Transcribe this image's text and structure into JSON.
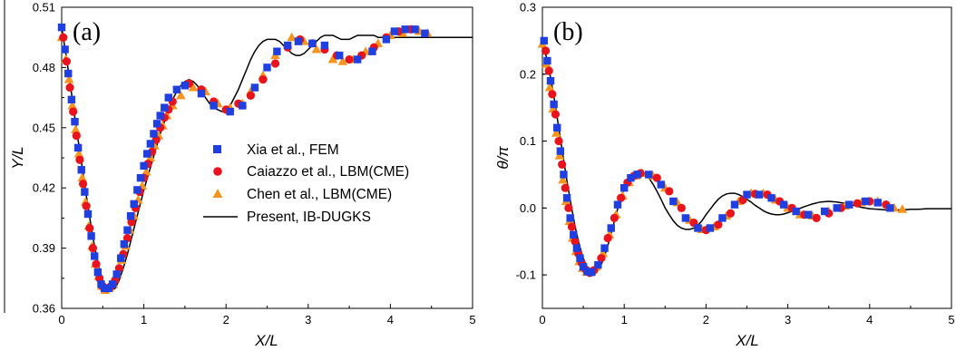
{
  "colors": {
    "fem": "#1f3fe0",
    "lbm_caiazzo": "#e8131c",
    "lbm_chen": "#f5951f",
    "present": "#000000"
  },
  "chart_data": [
    {
      "type": "scatter",
      "panel_label": "(a)",
      "xlabel": "X/L",
      "ylabel": "Y/L",
      "xlim": [
        0,
        5
      ],
      "ylim": [
        0.36,
        0.51
      ],
      "xticks": [
        0,
        1,
        2,
        3,
        4,
        5
      ],
      "yticks": [
        0.36,
        0.39,
        0.42,
        0.45,
        0.48,
        0.51
      ],
      "legend_position": "center-right",
      "series": [
        {
          "name": "Xia et al., FEM",
          "marker": "square",
          "color": "#1f3fe0",
          "x": [
            0.0,
            0.04,
            0.08,
            0.12,
            0.16,
            0.2,
            0.24,
            0.28,
            0.32,
            0.36,
            0.4,
            0.44,
            0.48,
            0.52,
            0.57,
            0.62,
            0.67,
            0.72,
            0.76,
            0.8,
            0.84,
            0.88,
            0.92,
            0.96,
            1.0,
            1.04,
            1.08,
            1.12,
            1.16,
            1.2,
            1.25,
            1.3,
            1.4,
            1.5,
            1.7,
            1.85,
            2.05,
            2.2,
            2.35,
            2.5,
            2.62,
            2.75,
            2.88,
            3.05,
            3.2,
            3.38,
            3.6,
            3.78,
            3.95,
            4.05,
            4.18,
            4.3,
            4.42
          ],
          "y": [
            0.5,
            0.489,
            0.477,
            0.464,
            0.453,
            0.44,
            0.429,
            0.418,
            0.407,
            0.396,
            0.386,
            0.378,
            0.372,
            0.37,
            0.37,
            0.372,
            0.377,
            0.385,
            0.392,
            0.399,
            0.406,
            0.412,
            0.419,
            0.425,
            0.431,
            0.437,
            0.442,
            0.447,
            0.452,
            0.456,
            0.46,
            0.465,
            0.469,
            0.471,
            0.467,
            0.461,
            0.458,
            0.461,
            0.47,
            0.48,
            0.488,
            0.491,
            0.493,
            0.492,
            0.491,
            0.486,
            0.484,
            0.488,
            0.494,
            0.498,
            0.499,
            0.499,
            0.497
          ]
        },
        {
          "name": "Caiazzo et al., LBM(CME)",
          "marker": "circle",
          "color": "#e8131c",
          "x": [
            0.02,
            0.06,
            0.1,
            0.14,
            0.18,
            0.22,
            0.26,
            0.3,
            0.34,
            0.38,
            0.42,
            0.46,
            0.5,
            0.55,
            0.6,
            0.65,
            0.7,
            0.75,
            0.8,
            0.85,
            0.9,
            0.95,
            1.0,
            1.05,
            1.1,
            1.15,
            1.2,
            1.25,
            1.3,
            1.35,
            1.55,
            1.7,
            1.85,
            2.0,
            2.15,
            2.3,
            2.45,
            2.6,
            2.75,
            2.9,
            3.05,
            3.2,
            3.35,
            3.5,
            3.65,
            3.8,
            3.95,
            4.1,
            4.25
          ],
          "y": [
            0.495,
            0.483,
            0.47,
            0.458,
            0.446,
            0.434,
            0.422,
            0.411,
            0.4,
            0.39,
            0.382,
            0.375,
            0.371,
            0.37,
            0.371,
            0.374,
            0.38,
            0.387,
            0.395,
            0.403,
            0.41,
            0.418,
            0.425,
            0.432,
            0.438,
            0.444,
            0.45,
            0.455,
            0.459,
            0.463,
            0.472,
            0.469,
            0.463,
            0.459,
            0.462,
            0.466,
            0.474,
            0.482,
            0.49,
            0.494,
            0.492,
            0.489,
            0.486,
            0.484,
            0.486,
            0.49,
            0.495,
            0.498,
            0.499
          ]
        },
        {
          "name": "Chen et al., LBM(CME)",
          "marker": "triangle",
          "color": "#f5951f",
          "x": [
            0.0,
            0.05,
            0.09,
            0.13,
            0.17,
            0.21,
            0.25,
            0.29,
            0.33,
            0.37,
            0.41,
            0.45,
            0.49,
            0.53,
            0.58,
            0.63,
            0.68,
            0.73,
            0.78,
            0.83,
            0.88,
            0.93,
            0.98,
            1.03,
            1.08,
            1.13,
            1.18,
            1.23,
            1.28,
            1.35,
            1.45,
            1.6,
            1.75,
            1.9,
            2.05,
            2.2,
            2.3,
            2.45,
            2.6,
            2.8,
            2.95,
            3.1,
            3.3,
            3.42,
            3.55,
            3.7,
            3.85,
            4.0,
            4.15,
            4.35,
            4.45
          ],
          "y": [
            0.495,
            0.484,
            0.474,
            0.461,
            0.449,
            0.437,
            0.425,
            0.413,
            0.401,
            0.391,
            0.382,
            0.376,
            0.371,
            0.369,
            0.37,
            0.372,
            0.377,
            0.384,
            0.391,
            0.399,
            0.406,
            0.414,
            0.421,
            0.428,
            0.435,
            0.441,
            0.446,
            0.451,
            0.456,
            0.461,
            0.466,
            0.47,
            0.468,
            0.462,
            0.46,
            0.462,
            0.468,
            0.476,
            0.486,
            0.495,
            0.493,
            0.489,
            0.484,
            0.483,
            0.484,
            0.488,
            0.492,
            0.496,
            0.497,
            0.498,
            0.497
          ]
        },
        {
          "name": "Present, IB-DUGKS",
          "marker": "line",
          "color": "#000000",
          "x": [
            0.0,
            0.05,
            0.1,
            0.15,
            0.2,
            0.25,
            0.3,
            0.35,
            0.4,
            0.45,
            0.5,
            0.55,
            0.6,
            0.65,
            0.7,
            0.75,
            0.8,
            0.85,
            0.9,
            0.95,
            1.0,
            1.05,
            1.1,
            1.15,
            1.2,
            1.25,
            1.3,
            1.35,
            1.4,
            1.45,
            1.5,
            1.55,
            1.6,
            1.65,
            1.7,
            1.75,
            1.8,
            1.85,
            1.9,
            1.95,
            2.0,
            2.05,
            2.1,
            2.15,
            2.2,
            2.25,
            2.3,
            2.35,
            2.4,
            2.45,
            2.5,
            2.55,
            2.6,
            2.65,
            2.7,
            2.75,
            2.8,
            2.85,
            2.9,
            2.95,
            3.0,
            3.05,
            3.1,
            3.15,
            3.2,
            3.25,
            3.3,
            3.35,
            3.4,
            3.45,
            3.5,
            3.55,
            3.6,
            3.65,
            3.7,
            3.75,
            3.8,
            3.85,
            3.9,
            3.95,
            4.0,
            4.05,
            4.1,
            4.15,
            4.2,
            4.25,
            4.3,
            4.35,
            4.4,
            4.45,
            4.5,
            4.6,
            4.7,
            4.8,
            4.9,
            5.0
          ],
          "y": [
            0.5,
            0.487,
            0.473,
            0.458,
            0.444,
            0.43,
            0.416,
            0.403,
            0.391,
            0.381,
            0.374,
            0.37,
            0.369,
            0.37,
            0.374,
            0.38,
            0.387,
            0.395,
            0.403,
            0.411,
            0.419,
            0.426,
            0.433,
            0.44,
            0.447,
            0.453,
            0.459,
            0.464,
            0.468,
            0.471,
            0.473,
            0.474,
            0.473,
            0.471,
            0.468,
            0.465,
            0.462,
            0.46,
            0.459,
            0.458,
            0.459,
            0.461,
            0.465,
            0.469,
            0.474,
            0.479,
            0.484,
            0.488,
            0.491,
            0.493,
            0.494,
            0.494,
            0.494,
            0.493,
            0.491,
            0.489,
            0.487,
            0.486,
            0.486,
            0.487,
            0.489,
            0.491,
            0.493,
            0.495,
            0.496,
            0.496,
            0.496,
            0.495,
            0.494,
            0.494,
            0.494,
            0.495,
            0.496,
            0.496,
            0.496,
            0.496,
            0.496,
            0.495,
            0.495,
            0.495,
            0.495,
            0.495,
            0.495,
            0.495,
            0.495,
            0.495,
            0.495,
            0.495,
            0.495,
            0.495,
            0.495,
            0.495,
            0.495,
            0.495,
            0.495,
            0.495
          ]
        }
      ]
    },
    {
      "type": "scatter",
      "panel_label": "(b)",
      "xlabel": "X/L",
      "ylabel": "θ/π",
      "xlim": [
        0,
        5
      ],
      "ylim": [
        -0.15,
        0.3
      ],
      "xticks": [
        0,
        1,
        2,
        3,
        4,
        5
      ],
      "yticks": [
        -0.1,
        0.0,
        0.1,
        0.2,
        0.3
      ],
      "series": [
        {
          "name": "Xia et al., FEM",
          "marker": "square",
          "color": "#1f3fe0",
          "x": [
            0.02,
            0.06,
            0.1,
            0.14,
            0.18,
            0.22,
            0.26,
            0.3,
            0.34,
            0.38,
            0.42,
            0.46,
            0.5,
            0.55,
            0.6,
            0.68,
            0.76,
            0.84,
            0.92,
            1.0,
            1.08,
            1.16,
            1.3,
            1.45,
            1.6,
            1.75,
            1.9,
            2.05,
            2.2,
            2.35,
            2.5,
            2.65,
            2.8,
            2.95,
            3.1,
            3.25,
            3.45,
            3.6,
            3.75,
            3.95,
            4.1,
            4.25
          ],
          "y": [
            0.25,
            0.22,
            0.19,
            0.155,
            0.12,
            0.085,
            0.05,
            0.015,
            -0.015,
            -0.04,
            -0.06,
            -0.075,
            -0.088,
            -0.095,
            -0.096,
            -0.085,
            -0.06,
            -0.03,
            0.005,
            0.03,
            0.045,
            0.05,
            0.05,
            0.035,
            0.01,
            -0.015,
            -0.03,
            -0.03,
            -0.015,
            0.005,
            0.02,
            0.02,
            0.015,
            0.005,
            -0.005,
            -0.01,
            -0.005,
            0.0,
            0.005,
            0.01,
            0.008,
            0.0
          ]
        },
        {
          "name": "Caiazzo et al., LBM(CME)",
          "marker": "circle",
          "color": "#e8131c",
          "x": [
            0.04,
            0.08,
            0.12,
            0.16,
            0.2,
            0.24,
            0.28,
            0.32,
            0.36,
            0.4,
            0.44,
            0.48,
            0.53,
            0.58,
            0.63,
            0.72,
            0.8,
            0.88,
            0.96,
            1.04,
            1.12,
            1.2,
            1.4,
            1.55,
            1.7,
            1.85,
            2.0,
            2.15,
            2.3,
            2.45,
            2.6,
            2.75,
            2.9,
            3.05,
            3.2,
            3.35,
            3.5,
            3.65,
            3.85,
            4.0,
            4.2
          ],
          "y": [
            0.235,
            0.205,
            0.17,
            0.14,
            0.1,
            0.065,
            0.03,
            0.0,
            -0.028,
            -0.05,
            -0.068,
            -0.082,
            -0.092,
            -0.097,
            -0.093,
            -0.075,
            -0.045,
            -0.015,
            0.015,
            0.038,
            0.048,
            0.052,
            0.045,
            0.025,
            0.0,
            -0.022,
            -0.033,
            -0.025,
            -0.008,
            0.012,
            0.021,
            0.02,
            0.01,
            0.0,
            -0.01,
            -0.015,
            -0.008,
            0.0,
            0.007,
            0.01,
            0.005
          ]
        },
        {
          "name": "Chen et al., LBM(CME)",
          "marker": "triangle",
          "color": "#f5951f",
          "x": [
            0.0,
            0.05,
            0.09,
            0.13,
            0.17,
            0.21,
            0.25,
            0.29,
            0.33,
            0.37,
            0.41,
            0.45,
            0.49,
            0.54,
            0.6,
            0.66,
            0.74,
            0.82,
            0.9,
            0.98,
            1.06,
            1.14,
            1.22,
            1.35,
            1.5,
            1.65,
            1.8,
            1.95,
            2.1,
            2.25,
            2.4,
            2.55,
            2.7,
            2.85,
            3.0,
            3.15,
            3.3,
            3.5,
            3.7,
            3.9,
            4.1,
            4.3,
            4.4
          ],
          "y": [
            0.245,
            0.215,
            0.18,
            0.148,
            0.112,
            0.078,
            0.042,
            0.01,
            -0.02,
            -0.045,
            -0.065,
            -0.08,
            -0.09,
            -0.096,
            -0.095,
            -0.088,
            -0.068,
            -0.04,
            -0.01,
            0.018,
            0.038,
            0.048,
            0.052,
            0.048,
            0.03,
            0.008,
            -0.018,
            -0.032,
            -0.028,
            -0.012,
            0.01,
            0.022,
            0.022,
            0.012,
            0.0,
            -0.01,
            -0.012,
            -0.005,
            0.003,
            0.008,
            0.01,
            0.0,
            -0.002
          ]
        },
        {
          "name": "Present, IB-DUGKS",
          "marker": "line",
          "color": "#000000",
          "x": [
            0.0,
            0.05,
            0.1,
            0.15,
            0.2,
            0.25,
            0.3,
            0.35,
            0.4,
            0.45,
            0.5,
            0.55,
            0.6,
            0.65,
            0.7,
            0.75,
            0.8,
            0.85,
            0.9,
            0.95,
            1.0,
            1.05,
            1.1,
            1.15,
            1.2,
            1.25,
            1.3,
            1.35,
            1.4,
            1.45,
            1.5,
            1.55,
            1.6,
            1.65,
            1.7,
            1.75,
            1.8,
            1.85,
            1.9,
            1.95,
            2.0,
            2.05,
            2.1,
            2.15,
            2.2,
            2.25,
            2.3,
            2.35,
            2.4,
            2.45,
            2.5,
            2.55,
            2.6,
            2.65,
            2.7,
            2.75,
            2.8,
            2.85,
            2.9,
            2.95,
            3.0,
            3.1,
            3.2,
            3.3,
            3.4,
            3.5,
            3.6,
            3.7,
            3.8,
            3.9,
            4.0,
            4.1,
            4.2,
            4.3,
            4.4,
            4.5,
            4.6,
            4.7,
            4.8,
            4.9,
            5.0
          ],
          "y": [
            0.248,
            0.225,
            0.195,
            0.16,
            0.12,
            0.08,
            0.04,
            0.005,
            -0.028,
            -0.055,
            -0.075,
            -0.09,
            -0.097,
            -0.097,
            -0.09,
            -0.076,
            -0.056,
            -0.033,
            -0.01,
            0.012,
            0.03,
            0.043,
            0.051,
            0.055,
            0.055,
            0.052,
            0.045,
            0.036,
            0.025,
            0.013,
            0.0,
            -0.01,
            -0.019,
            -0.026,
            -0.03,
            -0.032,
            -0.032,
            -0.03,
            -0.026,
            -0.019,
            -0.01,
            -0.002,
            0.006,
            0.013,
            0.018,
            0.021,
            0.022,
            0.022,
            0.02,
            0.017,
            0.013,
            0.009,
            0.004,
            0.0,
            -0.004,
            -0.007,
            -0.009,
            -0.01,
            -0.01,
            -0.009,
            -0.007,
            -0.003,
            0.002,
            0.006,
            0.009,
            0.01,
            0.009,
            0.007,
            0.004,
            0.001,
            -0.001,
            -0.002,
            -0.003,
            -0.003,
            -0.003,
            -0.002,
            -0.002,
            -0.001,
            -0.001,
            -0.001,
            -0.001
          ]
        }
      ]
    }
  ]
}
